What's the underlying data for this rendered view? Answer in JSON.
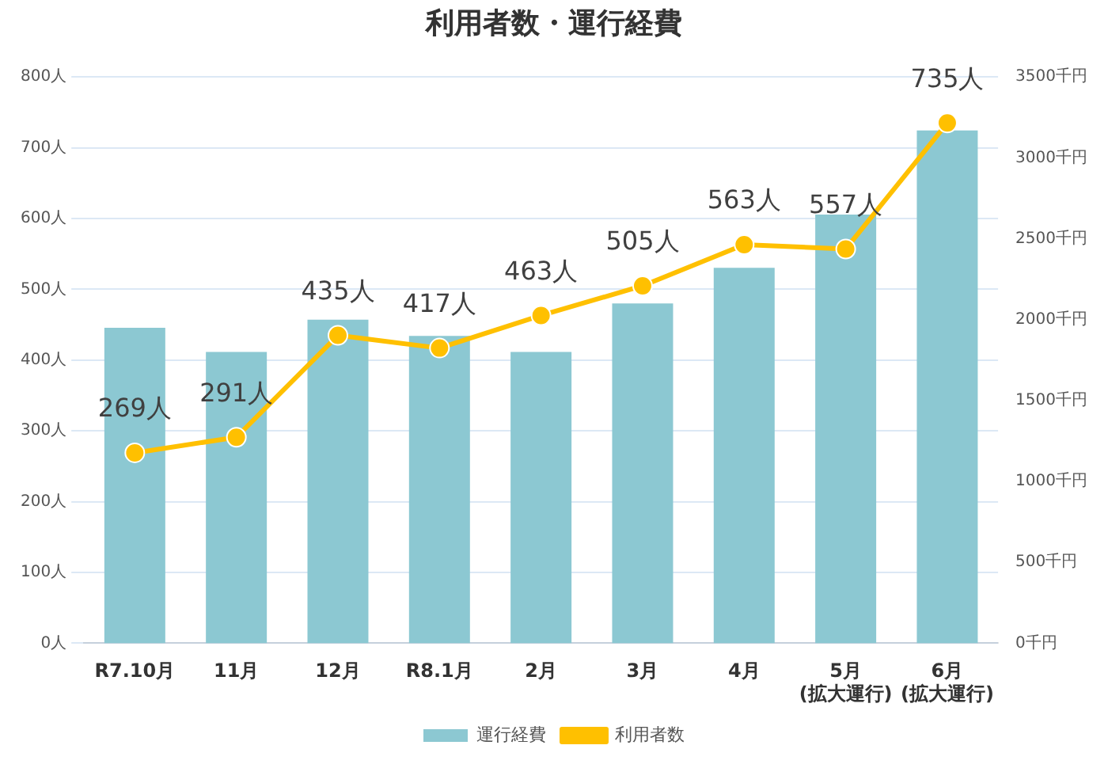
{
  "chart_data": {
    "type": "bar",
    "title": "利用者数・運行経費",
    "categories": [
      "R7.10月",
      "11月",
      "12月",
      "R8.1月",
      "2月",
      "3月",
      "4月",
      "5月\n(拡大運行)",
      "6月\n(拡大運行)"
    ],
    "series": [
      {
        "name": "運行経費",
        "axis": "y2",
        "color": "#8cc8d2",
        "values": [
          1950,
          1800,
          2000,
          1900,
          1800,
          2100,
          2320,
          2650,
          3170
        ]
      },
      {
        "name": "利用者数",
        "type": "line",
        "axis": "y",
        "color": "#ffc000",
        "marker": "circle",
        "values": [
          269,
          291,
          435,
          417,
          463,
          505,
          563,
          557,
          735
        ],
        "value_labels": [
          "269人",
          "291人",
          "435人",
          "417人",
          "463人",
          "505人",
          "563人",
          "557人",
          "735人"
        ]
      }
    ],
    "ylim": [
      0,
      800
    ],
    "yticks": [
      {
        "value": 0,
        "label": "0人"
      },
      {
        "value": 100,
        "label": "100人"
      },
      {
        "value": 200,
        "label": "200人"
      },
      {
        "value": 300,
        "label": "300人"
      },
      {
        "value": 400,
        "label": "400人"
      },
      {
        "value": 500,
        "label": "500人"
      },
      {
        "value": 600,
        "label": "600人"
      },
      {
        "value": 700,
        "label": "700人"
      },
      {
        "value": 800,
        "label": "800人"
      }
    ],
    "y2lim": [
      0,
      3500
    ],
    "y2ticks": [
      {
        "value": 0,
        "label": "0千円"
      },
      {
        "value": 500,
        "label": "500千円"
      },
      {
        "value": 1000,
        "label": "1000千円"
      },
      {
        "value": 1500,
        "label": "1500千円"
      },
      {
        "value": 2000,
        "label": "2000千円"
      },
      {
        "value": 2500,
        "label": "2500千円"
      },
      {
        "value": 3000,
        "label": "3000千円"
      },
      {
        "value": 3500,
        "label": "3500千円"
      }
    ],
    "grid": "y",
    "legend": "bottom"
  }
}
